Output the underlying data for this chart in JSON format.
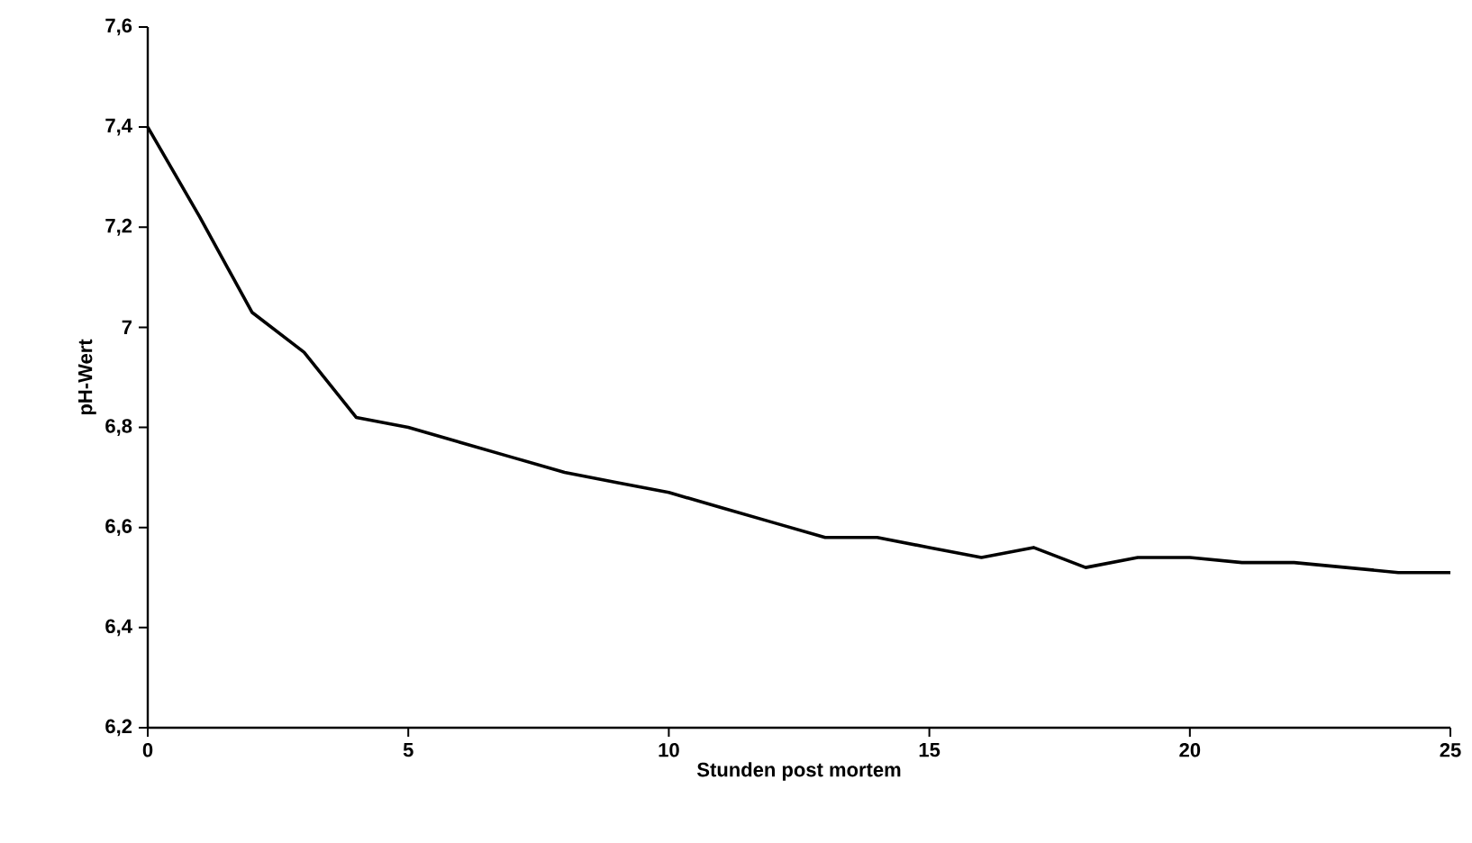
{
  "chart_data": {
    "type": "line",
    "xlabel": "Stunden post mortem",
    "ylabel": "pH-Wert",
    "x": [
      0,
      1,
      2,
      3,
      4,
      5,
      6,
      7,
      8,
      9,
      10,
      11,
      12,
      13,
      14,
      15,
      16,
      16.5,
      17,
      18,
      19,
      20,
      21,
      22,
      23,
      24,
      25
    ],
    "series": [
      {
        "color": "#000000",
        "values": [
          7.4,
          7.22,
          7.03,
          6.95,
          6.82,
          6.8,
          6.77,
          6.74,
          6.71,
          6.69,
          6.67,
          6.64,
          6.61,
          6.58,
          6.58,
          6.56,
          6.54,
          6.55,
          6.56,
          6.52,
          6.54,
          6.54,
          6.53,
          6.53,
          6.52,
          6.51,
          6.51
        ]
      }
    ],
    "xlim": [
      0,
      25
    ],
    "xticks": [
      0,
      5,
      10,
      15,
      20,
      25
    ],
    "ylim": [
      6.2,
      7.6
    ],
    "yticks": [
      {
        "value": 6.2,
        "label": "6,2"
      },
      {
        "value": 6.4,
        "label": "6,4"
      },
      {
        "value": 6.6,
        "label": "6,6"
      },
      {
        "value": 6.8,
        "label": "6,8"
      },
      {
        "value": 7,
        "label": "7"
      },
      {
        "value": 7.2,
        "label": "7,2"
      },
      {
        "value": 7.4,
        "label": "7,4"
      },
      {
        "value": 7.6,
        "label": "7,6"
      }
    ],
    "grid": false,
    "marker": "none",
    "line_style": "solid"
  }
}
